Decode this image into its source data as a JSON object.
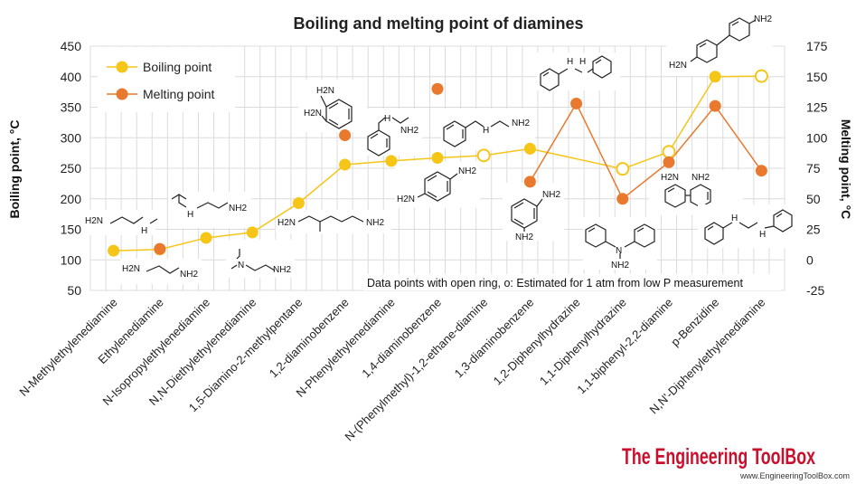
{
  "chart_data": {
    "type": "line",
    "title": "Boiling and melting point of diamines",
    "ylabel": "Boiling point, °C",
    "y2label": "Melting point, °C",
    "ylim": [
      50,
      450
    ],
    "y2lim": [
      -25,
      175
    ],
    "yticks": [
      "50",
      "100",
      "150",
      "200",
      "250",
      "300",
      "350",
      "400",
      "450"
    ],
    "y2ticks": [
      "-25",
      "0",
      "25",
      "50",
      "75",
      "100",
      "125",
      "150",
      "175"
    ],
    "categories": [
      "N-Methylethylenediamine",
      "Ethylenediamine",
      "N-Isopropylethylenediamine",
      "N,N-Diethylethylenediamine",
      "1,5-Diamino-2-methylpentane",
      "1,2-diaminobenzene",
      "N-Phenylethylenediamine",
      "1,4-diaminobenzene",
      "N-(Phenylmethyl)-1,2-ethane-diamine",
      "1,3-diaminobenzene",
      "1,2-Diphenylhydrazine",
      "1,1-Diphenylhydrazine",
      "1,1-biphenyl-2,2-diamine",
      "p-Benzidine",
      "N,N'-Diphenylethylenediamine"
    ],
    "series": [
      {
        "name": "Boiling point",
        "axis": "left",
        "color": "#f5c518",
        "values": [
          115,
          117,
          136,
          145,
          193,
          256,
          262,
          267,
          271,
          282,
          null,
          249,
          277,
          400,
          401
        ],
        "open": [
          false,
          false,
          false,
          false,
          false,
          false,
          false,
          false,
          true,
          false,
          false,
          true,
          true,
          false,
          true
        ]
      },
      {
        "name": "Melting point",
        "axis": "right",
        "color": "#e8792e",
        "values": [
          null,
          9,
          null,
          null,
          null,
          102,
          null,
          140,
          null,
          64,
          128,
          50,
          80,
          126,
          73
        ],
        "connected": [
          false,
          false,
          false,
          false,
          false,
          false,
          false,
          false,
          false,
          true,
          true,
          true,
          true,
          true,
          true
        ]
      }
    ],
    "annotation": "Data points with open ring, o: Estimated for 1 atm from low P measurement",
    "legend_position": "top-left",
    "grid": true
  },
  "molecule_labels": {
    "m1": "H2N",
    "m1b": "H",
    "m2": "H2N",
    "m2b": "NH2",
    "m3": "H",
    "m3b": "NH2",
    "m4": "N",
    "m4b": "NH2",
    "m5": "H2N",
    "m5b": "NH2",
    "m6": "H2N",
    "m6b": "H2N",
    "m7": "H",
    "m7b": "NH2",
    "m8": "H2N",
    "m8b": "NH2",
    "m9": "H",
    "m9b": "NH2",
    "m10": "NH2",
    "m10b": "NH2",
    "m11": "H",
    "m11b": "H",
    "m12": "N",
    "m12b": "NH2",
    "m13": "H2N",
    "m13b": "NH2",
    "m14": "NH2",
    "m14b": "H2N",
    "m15": "H",
    "m15b": "H"
  },
  "brand": {
    "name": "The Engineering ToolBox",
    "url": "www.EngineeringToolBox.com"
  }
}
